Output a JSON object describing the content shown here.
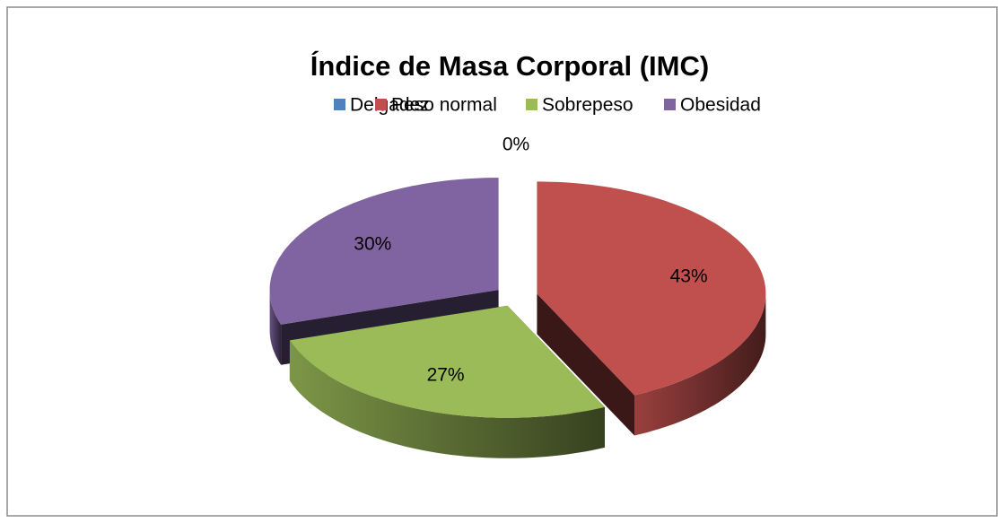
{
  "chart_data": {
    "type": "pie",
    "title": "Índice de Masa Corporal (IMC)",
    "categories": [
      "Delgadez",
      "Peso normal",
      "Sobrepeso",
      "Obesidad"
    ],
    "values": [
      0,
      43,
      27,
      30
    ],
    "value_labels": [
      "0%",
      "43%",
      "27%",
      "30%"
    ],
    "colors": [
      "#4f81bd",
      "#c0504d",
      "#9bbb59",
      "#8064a2"
    ],
    "legend": "top"
  }
}
